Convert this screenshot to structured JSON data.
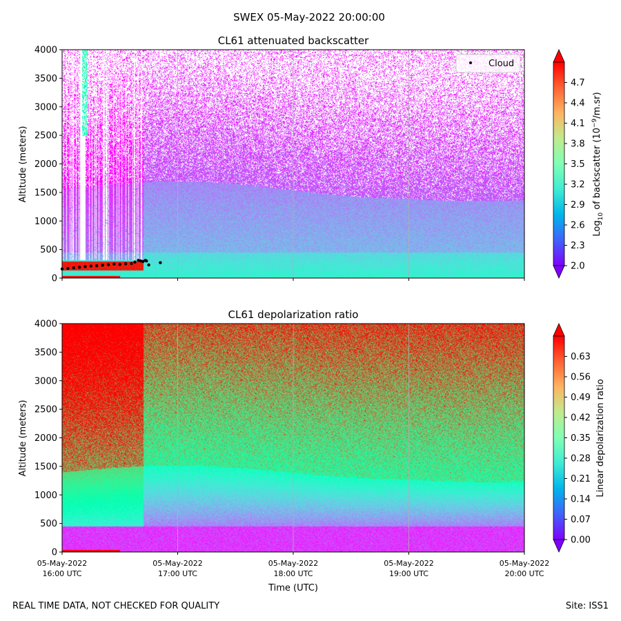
{
  "figure": {
    "suptitle": "SWEX 05-May-2022 20:00:00",
    "footer_left": "REAL TIME DATA, NOT CHECKED FOR QUALITY",
    "footer_right": "Site: ISS1",
    "xlabel": "Time (UTC)"
  },
  "chart_data": [
    {
      "type": "heatmap",
      "title": "CL61 attenuated backscatter",
      "ylabel": "Altitude (meters)",
      "ylim": [
        0,
        4000
      ],
      "yticks": [
        "0",
        "500",
        "1000",
        "1500",
        "2000",
        "2500",
        "3000",
        "3500",
        "4000"
      ],
      "x_range_hours": [
        16,
        20
      ],
      "grid": "vertical",
      "legend": {
        "label": "Cloud",
        "position": "top-right"
      },
      "colorbar": {
        "label": "Log10 of backscatter (10^-9/m.sr)",
        "label_parts": {
          "pre": "Log",
          "sub": "10",
          "mid": " of backscatter (10",
          "sup": "−9",
          "post": "/m.sr)"
        },
        "min": 2.0,
        "max": 5.0,
        "ticks": [
          "2.0",
          "2.3",
          "2.6",
          "2.9",
          "3.2",
          "3.5",
          "3.8",
          "4.1",
          "4.4",
          "4.7"
        ],
        "colormap": "rainbow",
        "extend": "both"
      },
      "cloud_base_points": [
        [
          16.0,
          160
        ],
        [
          16.05,
          170
        ],
        [
          16.1,
          180
        ],
        [
          16.15,
          190
        ],
        [
          16.2,
          200
        ],
        [
          16.25,
          210
        ],
        [
          16.3,
          215
        ],
        [
          16.35,
          225
        ],
        [
          16.4,
          235
        ],
        [
          16.45,
          245
        ],
        [
          16.5,
          240
        ],
        [
          16.55,
          250
        ],
        [
          16.6,
          255
        ],
        [
          16.63,
          280
        ],
        [
          16.66,
          310
        ],
        [
          16.68,
          300
        ],
        [
          16.7,
          290
        ],
        [
          16.72,
          310
        ],
        [
          16.73,
          300
        ],
        [
          16.75,
          230
        ],
        [
          16.85,
          270
        ]
      ]
    },
    {
      "type": "heatmap",
      "title": "CL61 depolarization ratio",
      "ylabel": "Altitude (meters)",
      "ylim": [
        0,
        4000
      ],
      "yticks": [
        "0",
        "500",
        "1000",
        "1500",
        "2000",
        "2500",
        "3000",
        "3500",
        "4000"
      ],
      "x_range_hours": [
        16,
        20
      ],
      "grid": "vertical",
      "colorbar": {
        "label": "Linear depolarization ratio",
        "min": 0.0,
        "max": 0.7,
        "ticks": [
          "0.00",
          "0.07",
          "0.14",
          "0.21",
          "0.28",
          "0.35",
          "0.42",
          "0.49",
          "0.56",
          "0.63"
        ],
        "colormap": "rainbow",
        "extend": "both"
      }
    }
  ],
  "xticks": [
    {
      "hour": 16,
      "date": "05-May-2022",
      "time": "16:00 UTC"
    },
    {
      "hour": 17,
      "date": "05-May-2022",
      "time": "17:00 UTC"
    },
    {
      "hour": 18,
      "date": "05-May-2022",
      "time": "18:00 UTC"
    },
    {
      "hour": 19,
      "date": "05-May-2022",
      "time": "19:00 UTC"
    },
    {
      "hour": 20,
      "date": "05-May-2022",
      "time": "20:00 UTC"
    }
  ]
}
